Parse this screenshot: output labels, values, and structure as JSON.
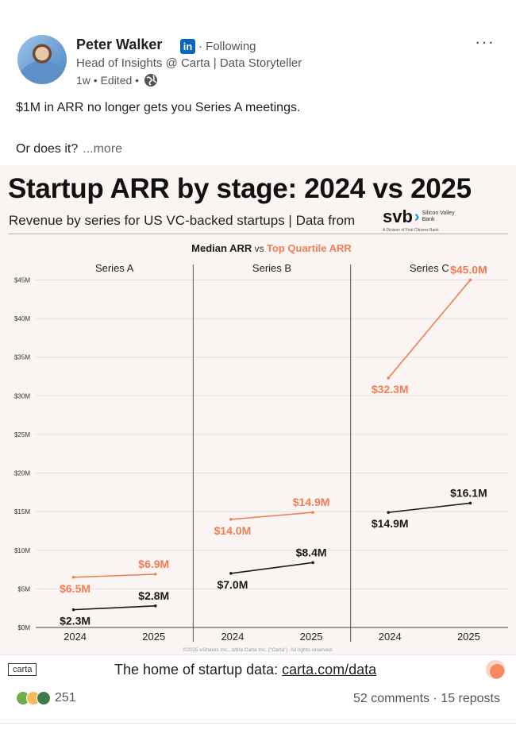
{
  "post": {
    "author": "Peter Walker",
    "follow_status": "· Following",
    "headline": "Head of Insights @ Carta | Data Storyteller",
    "meta": "1w • Edited •",
    "line1": "$1M in ARR no longer gets you Series A meetings.",
    "line2": "Or does it?",
    "more": "...more",
    "li_badge": "in"
  },
  "card": {
    "title": "Startup ARR by stage: 2024 vs 2025",
    "subtitle": "Revenue by series for US VC-backed startups | Data from",
    "svb_name": "svb",
    "svb_sub1": "Silicon Valley",
    "svb_sub2": "Bank",
    "svb_tag": "A Division of First Citizens Bank",
    "copyright": "©2025 eShares Inc., d/b/a Carta Inc. (\"Carta\"). All rights reserved.",
    "footer_prefix": "The home of startup data: ",
    "footer_link": "carta.com/data",
    "carta_logo": "carta"
  },
  "colors": {
    "median": "#1a1a1a",
    "top_quartile": "#f47c52",
    "grid": "#e6dfda",
    "panel_divider": "#555555"
  },
  "chart_data": {
    "type": "line",
    "title_median": "Median ARR",
    "title_vs": " vs ",
    "title_top": "Top Quartile ARR",
    "ylim": [
      0,
      47
    ],
    "yticks": [
      0,
      5,
      10,
      15,
      20,
      25,
      30,
      35,
      40,
      45
    ],
    "ytick_labels": [
      "$0M",
      "$5M",
      "$10M",
      "$15M",
      "$20M",
      "$25M",
      "$30M",
      "$35M",
      "$40M",
      "$45M"
    ],
    "x": [
      "2024",
      "2025"
    ],
    "panels": [
      {
        "name": "Series A",
        "series": [
          {
            "name": "Median ARR",
            "values": [
              2.3,
              2.8
            ],
            "labels": [
              "$2.3M",
              "$2.8M"
            ]
          },
          {
            "name": "Top Quartile ARR",
            "values": [
              6.5,
              6.9
            ],
            "labels": [
              "$6.5M",
              "$6.9M"
            ]
          }
        ]
      },
      {
        "name": "Series B",
        "series": [
          {
            "name": "Median ARR",
            "values": [
              7.0,
              8.4
            ],
            "labels": [
              "$7.0M",
              "$8.4M"
            ]
          },
          {
            "name": "Top Quartile ARR",
            "values": [
              14.0,
              14.9
            ],
            "labels": [
              "$14.0M",
              "$14.9M"
            ]
          }
        ]
      },
      {
        "name": "Series C",
        "series": [
          {
            "name": "Median ARR",
            "values": [
              14.9,
              16.1
            ],
            "labels": [
              "$14.9M",
              "$16.1M"
            ]
          },
          {
            "name": "Top Quartile ARR",
            "values": [
              32.3,
              45.0
            ],
            "labels": [
              "$32.3M",
              "$45.0M"
            ]
          }
        ]
      }
    ]
  },
  "social": {
    "reaction_count": "251",
    "engagement": "52 comments · 15 reposts"
  }
}
